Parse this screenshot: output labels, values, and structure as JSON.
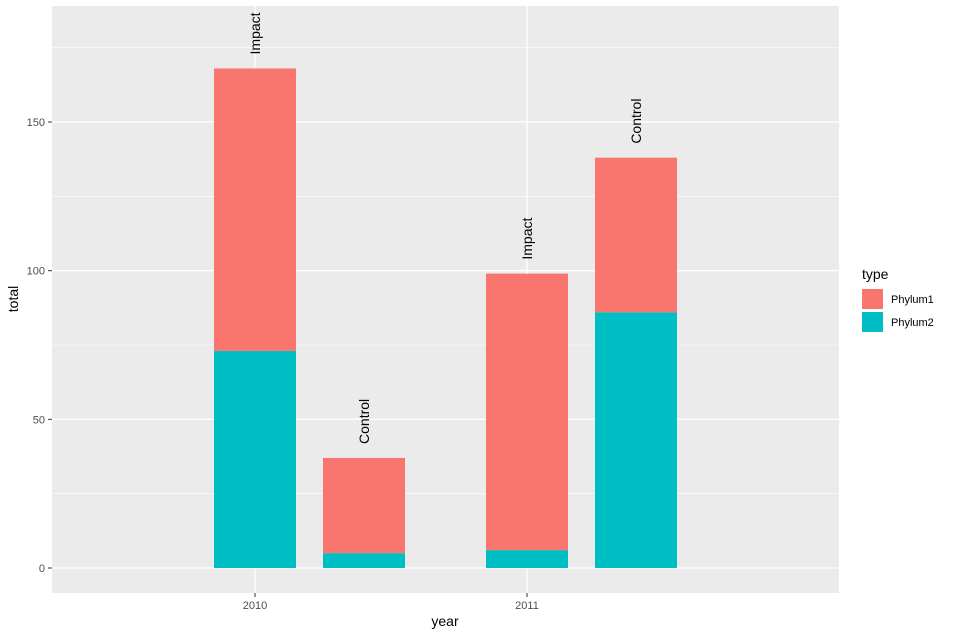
{
  "chart_data": {
    "type": "bar",
    "stacked": true,
    "xlabel": "year",
    "ylabel": "total",
    "x_ticks": [
      "2010",
      "2011"
    ],
    "y_ticks": [
      0,
      50,
      100,
      150
    ],
    "ylim": [
      -9,
      189
    ],
    "grid": true,
    "legend": {
      "title": "type",
      "position": "right",
      "entries": [
        "Phylum1",
        "Phylum2"
      ]
    },
    "colors": {
      "Phylum1": "#F8766D",
      "Phylum2": "#00BFC4",
      "panel": "#EBEBEB",
      "grid": "#FFFFFF"
    },
    "bars": [
      {
        "year": "2010",
        "label": "Impact",
        "Phylum1": 95,
        "Phylum2": 73,
        "total": 168
      },
      {
        "year": "2010",
        "label": "Control",
        "Phylum1": 32,
        "Phylum2": 5,
        "total": 37
      },
      {
        "year": "2011",
        "label": "Impact",
        "Phylum1": 93,
        "Phylum2": 6,
        "total": 99
      },
      {
        "year": "2011",
        "label": "Control",
        "Phylum1": 52,
        "Phylum2": 86,
        "total": 138
      }
    ]
  }
}
